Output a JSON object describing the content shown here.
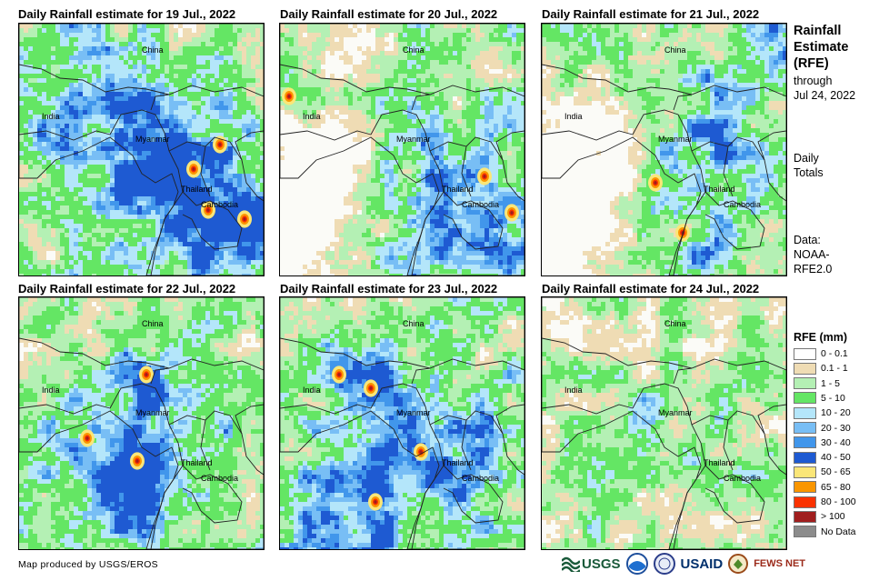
{
  "panels": [
    {
      "title": "Daily Rainfall estimate for 19 Jul., 2022",
      "day": 0
    },
    {
      "title": "Daily Rainfall estimate for 20 Jul., 2022",
      "day": 1
    },
    {
      "title": "Daily Rainfall estimate for 21 Jul., 2022",
      "day": 2
    },
    {
      "title": "Daily Rainfall estimate for 22 Jul., 2022",
      "day": 3
    },
    {
      "title": "Daily Rainfall estimate for 23 Jul., 2022",
      "day": 4
    },
    {
      "title": "Daily Rainfall estimate for 24 Jul., 2022",
      "day": 5
    }
  ],
  "map_labels": {
    "china": "China",
    "india": "India",
    "myanmar": "Myanmar",
    "thailand": "Thailand",
    "cambodia": "Cambodia"
  },
  "sidebar": {
    "title_line1": "Rainfall",
    "title_line2": "Estimate",
    "title_line3": "(RFE)",
    "through": "through",
    "date": "Jul 24, 2022",
    "daily1": "Daily",
    "daily2": "Totals",
    "data1": "Data:",
    "data2": "NOAA-",
    "data3": "RFE2.0"
  },
  "legend": {
    "title": "RFE (mm)",
    "items": [
      {
        "label": "0 - 0.1",
        "color": "#ffffff"
      },
      {
        "label": "0.1 - 1",
        "color": "#efdcb4"
      },
      {
        "label": "1 - 5",
        "color": "#b4f0b4"
      },
      {
        "label": "5 - 10",
        "color": "#64e664"
      },
      {
        "label": "10 - 20",
        "color": "#b4e6fa"
      },
      {
        "label": "20 - 30",
        "color": "#78bef5"
      },
      {
        "label": "30 - 40",
        "color": "#4196eb"
      },
      {
        "label": "40 - 50",
        "color": "#1e5ad2"
      },
      {
        "label": "50 - 65",
        "color": "#fae678"
      },
      {
        "label": "65 - 80",
        "color": "#fa9600"
      },
      {
        "label": "80 - 100",
        "color": "#fa3200"
      },
      {
        "label": "> 100",
        "color": "#a01e1e"
      },
      {
        "label": "No Data",
        "color": "#8c8c8c"
      }
    ]
  },
  "footer": {
    "credit": "Map produced by USGS/EROS",
    "logo_usgs": "USGS",
    "logo_usaid": "USAID",
    "logo_fews": "FEWS NET"
  }
}
